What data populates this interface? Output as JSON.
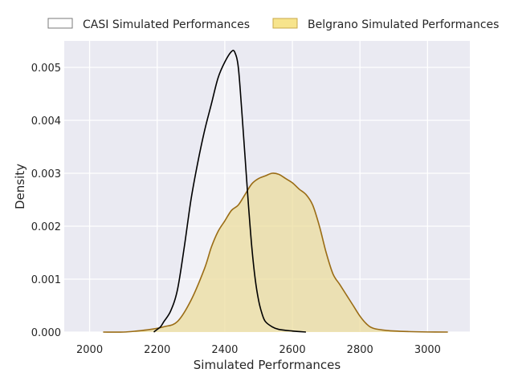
{
  "chart_data": {
    "type": "area",
    "title": "",
    "xlabel": "Simulated Performances",
    "ylabel": "Density",
    "xlim": [
      1925,
      3125
    ],
    "ylim": [
      0,
      0.0055
    ],
    "x_ticks": [
      "2000",
      "2200",
      "2400",
      "2600",
      "2800",
      "3000"
    ],
    "y_ticks": [
      "0.000",
      "0.001",
      "0.002",
      "0.003",
      "0.004",
      "0.005"
    ],
    "grid": true,
    "legend_position": "top (outside, above plot)",
    "series": [
      {
        "name": "CASI Simulated Performances",
        "style": "unfilled",
        "line_color": "#000000",
        "fill_color": "#ffffff",
        "points": [
          [
            2190,
            0.0
          ],
          [
            2200,
            5e-05
          ],
          [
            2210,
            0.0001
          ],
          [
            2220,
            0.0002
          ],
          [
            2240,
            0.0004
          ],
          [
            2260,
            0.0008
          ],
          [
            2280,
            0.0016
          ],
          [
            2300,
            0.0025
          ],
          [
            2320,
            0.0032
          ],
          [
            2340,
            0.0038
          ],
          [
            2360,
            0.0043
          ],
          [
            2380,
            0.0048
          ],
          [
            2400,
            0.0051
          ],
          [
            2420,
            0.0053
          ],
          [
            2430,
            0.00528
          ],
          [
            2440,
            0.005
          ],
          [
            2450,
            0.0042
          ],
          [
            2460,
            0.0033
          ],
          [
            2470,
            0.0024
          ],
          [
            2480,
            0.0016
          ],
          [
            2490,
            0.001
          ],
          [
            2500,
            0.0006
          ],
          [
            2510,
            0.00035
          ],
          [
            2520,
            0.0002
          ],
          [
            2540,
            0.0001
          ],
          [
            2560,
            5e-05
          ],
          [
            2600,
            2e-05
          ],
          [
            2640,
            0.0
          ]
        ]
      },
      {
        "name": "Belgrano Simulated Performances",
        "style": "filled",
        "line_color": "#9a6c15",
        "fill_color": "#ecdd9a",
        "points": [
          [
            2040,
            0.0
          ],
          [
            2100,
            0.0
          ],
          [
            2140,
            2e-05
          ],
          [
            2180,
            5e-05
          ],
          [
            2220,
            0.0001
          ],
          [
            2260,
            0.0002
          ],
          [
            2300,
            0.0006
          ],
          [
            2340,
            0.0012
          ],
          [
            2360,
            0.0016
          ],
          [
            2380,
            0.0019
          ],
          [
            2400,
            0.0021
          ],
          [
            2420,
            0.0023
          ],
          [
            2440,
            0.0024
          ],
          [
            2460,
            0.0026
          ],
          [
            2480,
            0.0028
          ],
          [
            2500,
            0.0029
          ],
          [
            2520,
            0.00295
          ],
          [
            2540,
            0.003
          ],
          [
            2560,
            0.00298
          ],
          [
            2580,
            0.0029
          ],
          [
            2600,
            0.00282
          ],
          [
            2620,
            0.0027
          ],
          [
            2640,
            0.0026
          ],
          [
            2660,
            0.0024
          ],
          [
            2680,
            0.002
          ],
          [
            2700,
            0.0015
          ],
          [
            2720,
            0.0011
          ],
          [
            2740,
            0.0009
          ],
          [
            2760,
            0.0007
          ],
          [
            2780,
            0.0005
          ],
          [
            2800,
            0.0003
          ],
          [
            2820,
            0.00015
          ],
          [
            2840,
            7e-05
          ],
          [
            2880,
            3e-05
          ],
          [
            2940,
            1e-05
          ],
          [
            3000,
            2e-06
          ],
          [
            3060,
            0.0
          ]
        ]
      }
    ]
  }
}
